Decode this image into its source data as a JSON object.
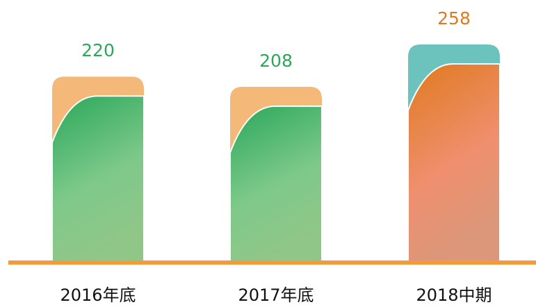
{
  "chart_data": {
    "type": "bar",
    "categories": [
      "2016年底",
      "2017年底",
      "2018中期"
    ],
    "values": [
      220,
      208,
      258
    ],
    "colors": [
      "#2aa85a",
      "#2aa85a",
      "#e07a1f"
    ],
    "bar_colors": [
      "#7ec98a",
      "#7ec98a",
      "#ef8f6e"
    ],
    "accent_colors": [
      "#f4b878",
      "#f4b878",
      "#6cc3bd"
    ],
    "baseline_color": "#f39a3c"
  }
}
